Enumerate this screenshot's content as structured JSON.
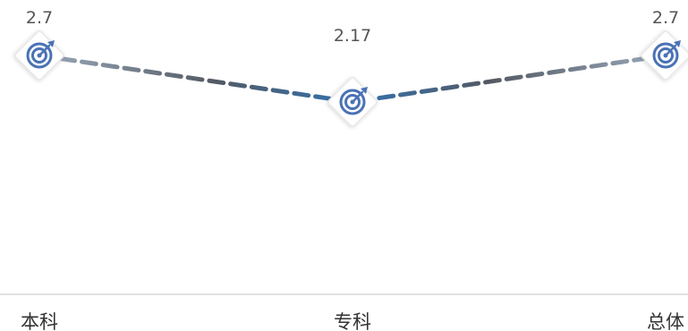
{
  "chart_data": {
    "type": "line",
    "categories": [
      "本科",
      "专科",
      "总体"
    ],
    "series": [
      {
        "values": [
          2.7,
          2.17,
          2.7
        ]
      }
    ],
    "data_labels": [
      "2.7",
      "2.17",
      "2.7"
    ],
    "ylim": [
      0,
      3
    ],
    "grid": false,
    "legend": "none",
    "marker": "target-icon",
    "line_style": "dashed-gradient",
    "colors": {
      "line_edge": "#9aaabb",
      "line_mid_dark": "#545a64",
      "line_center": "#3372b0",
      "marker_border": "#e6e6e6",
      "marker_icon": "#4a72b5",
      "axis": "#d9d9d9"
    }
  }
}
